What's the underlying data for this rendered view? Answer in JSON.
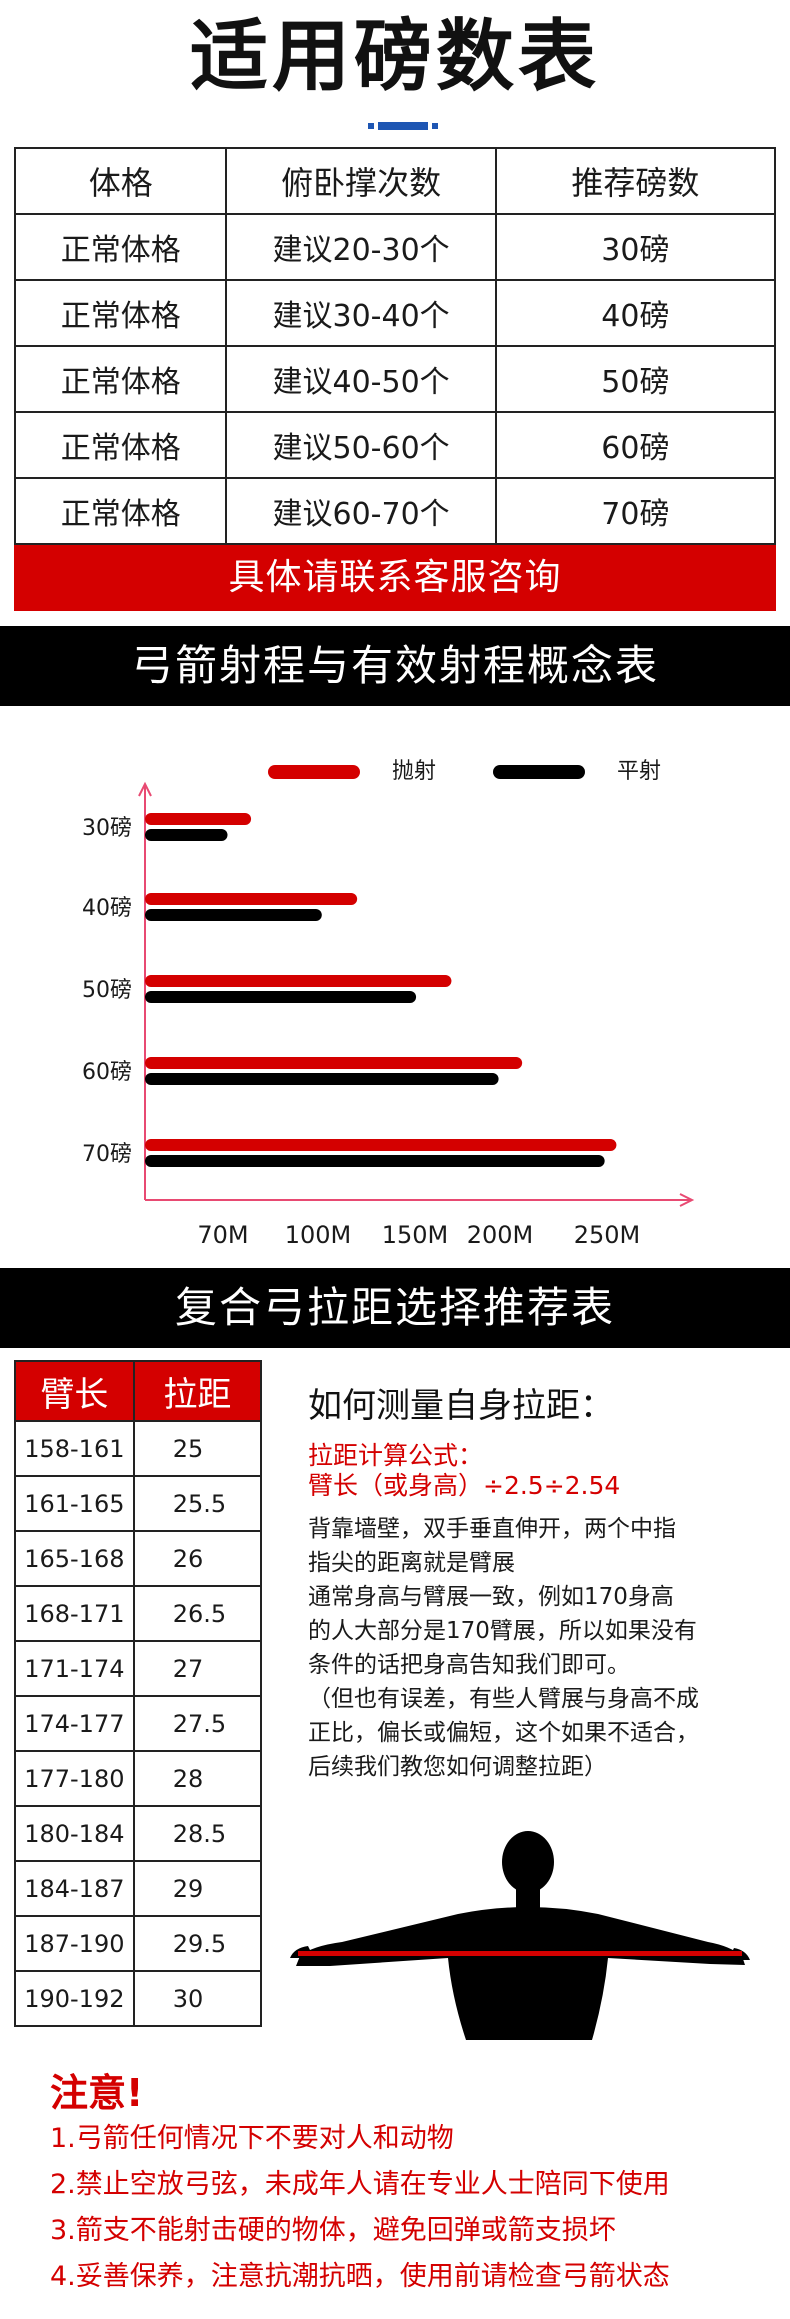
{
  "title": "适用磅数表",
  "pound_table": {
    "headers": [
      "体格",
      "俯卧撑次数",
      "推荐磅数"
    ],
    "rows": [
      [
        "正常体格",
        "建议20-30个",
        "30磅"
      ],
      [
        "正常体格",
        "建议30-40个",
        "40磅"
      ],
      [
        "正常体格",
        "建议40-50个",
        "50磅"
      ],
      [
        "正常体格",
        "建议50-60个",
        "60磅"
      ],
      [
        "正常体格",
        "建议60-70个",
        "70磅"
      ]
    ],
    "footer": "具体请联系客服咨询"
  },
  "chart_banner": "弓箭射程与有效射程概念表",
  "chart_data": {
    "type": "bar",
    "orientation": "horizontal",
    "categories": [
      "30磅",
      "40磅",
      "50磅",
      "60磅",
      "70磅"
    ],
    "series": [
      {
        "name": "抛射",
        "color": "#d40000",
        "values": [
          80,
          125,
          165,
          195,
          235
        ]
      },
      {
        "name": "平射",
        "color": "#000000",
        "values": [
          70,
          110,
          150,
          185,
          230
        ]
      }
    ],
    "x_ticks": [
      "70M",
      "100M",
      "150M",
      "200M",
      "250M"
    ],
    "x_tick_values": [
      70,
      100,
      150,
      200,
      250
    ],
    "xlim": [
      35,
      245
    ],
    "legend": "top-right",
    "grid": false
  },
  "draw_banner": "复合弓拉距选择推荐表",
  "draw_table": {
    "headers": [
      "臂长",
      "拉距"
    ],
    "rows": [
      [
        "158-161",
        "25"
      ],
      [
        "161-165",
        "25.5"
      ],
      [
        "165-168",
        "26"
      ],
      [
        "168-171",
        "26.5"
      ],
      [
        "171-174",
        "27"
      ],
      [
        "174-177",
        "27.5"
      ],
      [
        "177-180",
        "28"
      ],
      [
        "180-184",
        "28.5"
      ],
      [
        "184-187",
        "29"
      ],
      [
        "187-190",
        "29.5"
      ],
      [
        "190-192",
        "30"
      ]
    ]
  },
  "measure": {
    "title": "如何测量自身拉距：",
    "formula_label": "拉距计算公式：",
    "formula": "臂长（或身高）÷2.5÷2.54",
    "para1": [
      "背靠墙壁，双手垂直伸开，两个中指",
      "指尖的距离就是臂展"
    ],
    "para2": [
      "通常身高与臂展一致，例如170身高",
      "的人大部分是170臂展，所以如果没有",
      "条件的话把身高告知我们即可。"
    ],
    "para3": [
      "（但也有误差，有些人臂展与身高不成",
      "正比，偏长或偏短，这个如果不适合，",
      "后续我们教您如何调整拉距）"
    ]
  },
  "notice": {
    "title": "注意!",
    "items": [
      "1.弓箭任何情况下不要对人和动物",
      "2.禁止空放弓弦，未成年人请在专业人士陪同下使用",
      "3.箭支不能射击硬的物体，避免回弹或箭支损坏",
      "4.妥善保养，注意抗潮抗晒，使用前请检查弓箭状态"
    ]
  },
  "colors": {
    "accent_red": "#d40000",
    "accent_blue": "#1e56b3",
    "banner_bg": "#000000"
  }
}
